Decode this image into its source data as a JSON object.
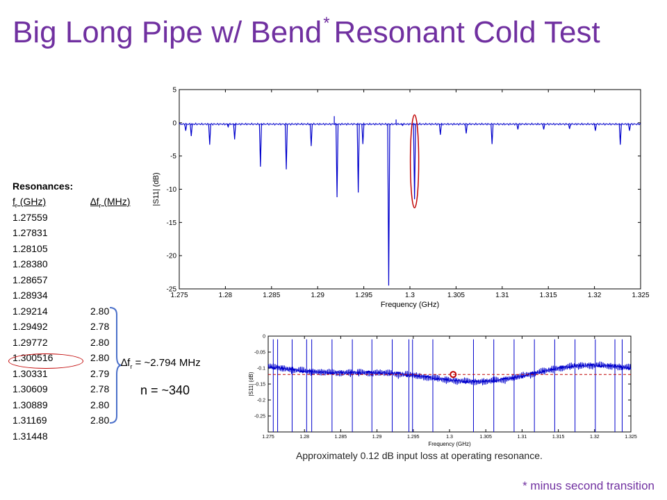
{
  "title": {
    "main": "Big Long Pipe w/ Bend",
    "star": "*",
    "rest": "Resonant Cold Test"
  },
  "table": {
    "heading": "Resonances:",
    "col1": "f",
    "col1_sub": "r",
    "col1_unit": " (GHz)",
    "col2_prefix": "∆f",
    "col2_sub": "r",
    "col2_unit": " (MHz)",
    "rows": [
      [
        "1.27559",
        ""
      ],
      [
        "1.27831",
        ""
      ],
      [
        "1.28105",
        ""
      ],
      [
        "1.28380",
        ""
      ],
      [
        "1.28657",
        ""
      ],
      [
        "1.28934",
        ""
      ],
      [
        "1.29214",
        "2.80"
      ],
      [
        "1.29492",
        "2.78"
      ],
      [
        "1.29772",
        "2.80"
      ],
      [
        "1.300516",
        "2.80"
      ],
      [
        "1.30331",
        "2.79"
      ],
      [
        "1.30609",
        "2.78"
      ],
      [
        "1.30889",
        "2.80"
      ],
      [
        "1.31169",
        "2.80"
      ],
      [
        "1.31448",
        ""
      ]
    ]
  },
  "delta_label": {
    "prefix": "∆f",
    "sub": "r",
    "rest": " = ~2.794 MHz"
  },
  "n_label": "n = ~340",
  "caption": "Approximately 0.12 dB input loss at operating resonance.",
  "footnote": "* minus second transition",
  "colors": {
    "title": "#7030a0",
    "trace": "#0000cc",
    "highlight": "#c00000"
  },
  "chart_data": [
    {
      "type": "line",
      "title": "",
      "xlabel": "Frequency (GHz)",
      "ylabel": "|S11| (dB)",
      "xlim": [
        1.275,
        1.325
      ],
      "ylim": [
        -25,
        5
      ],
      "x_ticks": [
        "1.275",
        "1.28",
        "1.285",
        "1.29",
        "1.295",
        "1.3",
        "1.305",
        "1.31",
        "1.315",
        "1.32",
        "1.325"
      ],
      "y_ticks": [
        "5",
        "0",
        "-5",
        "-10",
        "-15",
        "-20",
        "-25"
      ],
      "baseline": -0.2,
      "dips": [
        {
          "x": 1.2757,
          "y": -1.2
        },
        {
          "x": 1.2763,
          "y": -2.0
        },
        {
          "x": 1.2783,
          "y": -3.3
        },
        {
          "x": 1.2803,
          "y": -0.6
        },
        {
          "x": 1.281,
          "y": -2.5
        },
        {
          "x": 1.2838,
          "y": -6.6
        },
        {
          "x": 1.2866,
          "y": -7.0
        },
        {
          "x": 1.2893,
          "y": -3.5
        },
        {
          "x": 1.2921,
          "y": -11.2
        },
        {
          "x": 1.2944,
          "y": -10.5
        },
        {
          "x": 1.2949,
          "y": -3.2
        },
        {
          "x": 1.2977,
          "y": -24.5
        },
        {
          "x": 1.2992,
          "y": -0.4
        },
        {
          "x": 1.3005,
          "y": -11.5
        },
        {
          "x": 1.3033,
          "y": -1.8
        },
        {
          "x": 1.3061,
          "y": -1.6
        },
        {
          "x": 1.3089,
          "y": -3.2
        },
        {
          "x": 1.3117,
          "y": -1.0
        },
        {
          "x": 1.3145,
          "y": -1.0
        },
        {
          "x": 1.3173,
          "y": -0.9
        },
        {
          "x": 1.3201,
          "y": -1.2
        },
        {
          "x": 1.3228,
          "y": -3.3
        },
        {
          "x": 1.3238,
          "y": -1.2
        }
      ],
      "spikes": [
        {
          "x": 1.2918,
          "y": 1.0
        },
        {
          "x": 1.2985,
          "y": 0.5
        }
      ],
      "highlight": {
        "x": 1.3005,
        "y_range": [
          -12.8,
          1.2
        ]
      }
    },
    {
      "type": "line",
      "title": "",
      "xlabel": "Frequency (GHz)",
      "ylabel": "|S11| (dB)",
      "xlim": [
        1.275,
        1.325
      ],
      "ylim": [
        -0.3,
        0
      ],
      "x_ticks": [
        "1.275",
        "1.28",
        "1.285",
        "1.29",
        "1.295",
        "1.3",
        "1.305",
        "1.31",
        "1.315",
        "1.32",
        "1.325"
      ],
      "y_ticks": [
        "0",
        "-0.05",
        "-0.1",
        "-0.15",
        "-0.2",
        "-0.25"
      ],
      "reference_line": -0.12,
      "marker": {
        "x": 1.3005,
        "y": -0.12
      },
      "notches": [
        1.2757,
        1.2763,
        1.2783,
        1.2803,
        1.281,
        1.2838,
        1.2866,
        1.2893,
        1.2921,
        1.2944,
        1.2949,
        1.2977,
        1.3033,
        1.3061,
        1.3089,
        1.3117,
        1.3145,
        1.3173,
        1.3201,
        1.3228,
        1.3238
      ]
    }
  ]
}
